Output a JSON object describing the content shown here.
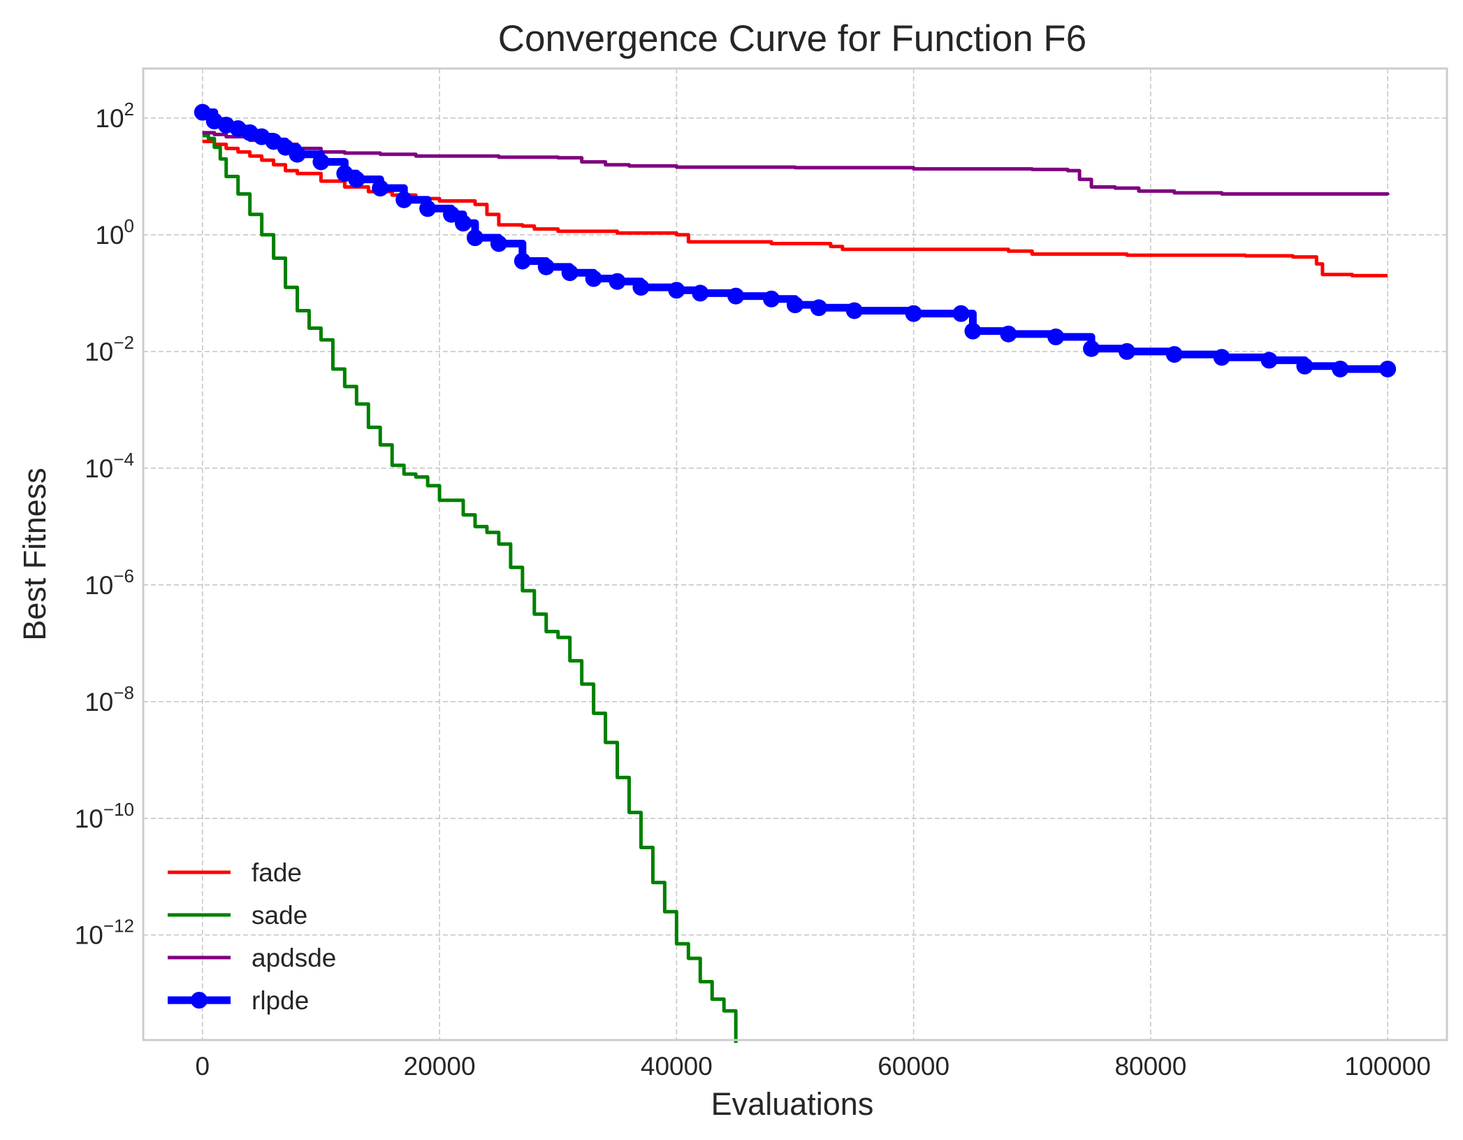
{
  "chart_data": {
    "type": "line",
    "title": "Convergence Curve for Function F6",
    "xlabel": "Evaluations",
    "ylabel": "Best Fitness",
    "xlim": [
      -5000,
      105000
    ],
    "ylim_log10": [
      -13.8,
      2.85
    ],
    "yscale": "log",
    "grid": true,
    "legend_position": "lower-left",
    "x_ticks": [
      {
        "value": 0,
        "label": "0"
      },
      {
        "value": 20000,
        "label": "20000"
      },
      {
        "value": 40000,
        "label": "40000"
      },
      {
        "value": 60000,
        "label": "60000"
      },
      {
        "value": 80000,
        "label": "80000"
      },
      {
        "value": 100000,
        "label": "100000"
      }
    ],
    "y_ticks": [
      {
        "exp": 2,
        "base": "10",
        "sup": "2"
      },
      {
        "exp": 0,
        "base": "10",
        "sup": "0"
      },
      {
        "exp": -2,
        "base": "10",
        "sup": "−2"
      },
      {
        "exp": -4,
        "base": "10",
        "sup": "−4"
      },
      {
        "exp": -6,
        "base": "10",
        "sup": "−6"
      },
      {
        "exp": -8,
        "base": "10",
        "sup": "−8"
      },
      {
        "exp": -10,
        "base": "10",
        "sup": "−10"
      },
      {
        "exp": -12,
        "base": "10",
        "sup": "−12"
      }
    ],
    "series": [
      {
        "name": "fade",
        "color": "#ff0000",
        "marker": "none",
        "points": [
          [
            0,
            1.6
          ],
          [
            1000,
            1.55
          ],
          [
            2000,
            1.48
          ],
          [
            3000,
            1.42
          ],
          [
            4000,
            1.35
          ],
          [
            5000,
            1.28
          ],
          [
            6000,
            1.2
          ],
          [
            7000,
            1.1
          ],
          [
            8000,
            1.05
          ],
          [
            10000,
            0.92
          ],
          [
            12000,
            0.82
          ],
          [
            14000,
            0.74
          ],
          [
            16000,
            0.68
          ],
          [
            18000,
            0.62
          ],
          [
            20000,
            0.58
          ],
          [
            23000,
            0.52
          ],
          [
            24000,
            0.35
          ],
          [
            25000,
            0.17
          ],
          [
            27000,
            0.15
          ],
          [
            28000,
            0.1
          ],
          [
            30000,
            0.06
          ],
          [
            35000,
            0.03
          ],
          [
            40000,
            0.0
          ],
          [
            41000,
            -0.12
          ],
          [
            48000,
            -0.15
          ],
          [
            53000,
            -0.2
          ],
          [
            54000,
            -0.25
          ],
          [
            68000,
            -0.28
          ],
          [
            70000,
            -0.33
          ],
          [
            78000,
            -0.35
          ],
          [
            88000,
            -0.36
          ],
          [
            92000,
            -0.38
          ],
          [
            94000,
            -0.5
          ],
          [
            94500,
            -0.68
          ],
          [
            97000,
            -0.7
          ],
          [
            100000,
            -0.7
          ]
        ]
      },
      {
        "name": "sade",
        "color": "#008000",
        "marker": "none",
        "points": [
          [
            0,
            1.7
          ],
          [
            500,
            1.65
          ],
          [
            1000,
            1.5
          ],
          [
            1500,
            1.3
          ],
          [
            2000,
            1.0
          ],
          [
            3000,
            0.7
          ],
          [
            4000,
            0.35
          ],
          [
            5000,
            0.0
          ],
          [
            6000,
            -0.4
          ],
          [
            7000,
            -0.9
          ],
          [
            8000,
            -1.3
          ],
          [
            9000,
            -1.6
          ],
          [
            10000,
            -1.8
          ],
          [
            11000,
            -2.3
          ],
          [
            12000,
            -2.6
          ],
          [
            13000,
            -2.9
          ],
          [
            14000,
            -3.3
          ],
          [
            15000,
            -3.6
          ],
          [
            16000,
            -3.95
          ],
          [
            17000,
            -4.1
          ],
          [
            18000,
            -4.15
          ],
          [
            19000,
            -4.3
          ],
          [
            20000,
            -4.55
          ],
          [
            22000,
            -4.8
          ],
          [
            23000,
            -5.0
          ],
          [
            24000,
            -5.1
          ],
          [
            25000,
            -5.3
          ],
          [
            26000,
            -5.7
          ],
          [
            27000,
            -6.1
          ],
          [
            28000,
            -6.5
          ],
          [
            29000,
            -6.8
          ],
          [
            30000,
            -6.9
          ],
          [
            31000,
            -7.3
          ],
          [
            32000,
            -7.7
          ],
          [
            33000,
            -8.2
          ],
          [
            34000,
            -8.7
          ],
          [
            35000,
            -9.3
          ],
          [
            36000,
            -9.9
          ],
          [
            37000,
            -10.5
          ],
          [
            38000,
            -11.1
          ],
          [
            39000,
            -11.6
          ],
          [
            40000,
            -12.15
          ],
          [
            41000,
            -12.4
          ],
          [
            42000,
            -12.8
          ],
          [
            43000,
            -13.1
          ],
          [
            44000,
            -13.3
          ],
          [
            45000,
            -13.85
          ]
        ]
      },
      {
        "name": "apdsde",
        "color": "#800080",
        "marker": "none",
        "points": [
          [
            0,
            1.75
          ],
          [
            1000,
            1.72
          ],
          [
            2000,
            1.68
          ],
          [
            4000,
            1.62
          ],
          [
            6000,
            1.55
          ],
          [
            8000,
            1.48
          ],
          [
            10000,
            1.42
          ],
          [
            12000,
            1.4
          ],
          [
            15000,
            1.38
          ],
          [
            18000,
            1.35
          ],
          [
            25000,
            1.33
          ],
          [
            30000,
            1.32
          ],
          [
            32000,
            1.25
          ],
          [
            34000,
            1.2
          ],
          [
            36000,
            1.18
          ],
          [
            40000,
            1.16
          ],
          [
            50000,
            1.15
          ],
          [
            60000,
            1.13
          ],
          [
            70000,
            1.12
          ],
          [
            73000,
            1.1
          ],
          [
            74000,
            0.95
          ],
          [
            75000,
            0.82
          ],
          [
            77000,
            0.8
          ],
          [
            79000,
            0.75
          ],
          [
            82000,
            0.72
          ],
          [
            86000,
            0.7
          ],
          [
            90000,
            0.7
          ],
          [
            100000,
            0.68
          ]
        ]
      },
      {
        "name": "rlpde",
        "color": "#0000ff",
        "marker": "o",
        "points": [
          [
            0,
            2.1
          ],
          [
            1000,
            1.95
          ],
          [
            2000,
            1.88
          ],
          [
            3000,
            1.82
          ],
          [
            4000,
            1.75
          ],
          [
            5000,
            1.68
          ],
          [
            6000,
            1.6
          ],
          [
            7000,
            1.5
          ],
          [
            8000,
            1.38
          ],
          [
            10000,
            1.25
          ],
          [
            12000,
            1.05
          ],
          [
            13000,
            0.95
          ],
          [
            15000,
            0.8
          ],
          [
            17000,
            0.6
          ],
          [
            19000,
            0.45
          ],
          [
            21000,
            0.35
          ],
          [
            22000,
            0.2
          ],
          [
            23000,
            -0.05
          ],
          [
            25000,
            -0.15
          ],
          [
            27000,
            -0.45
          ],
          [
            29000,
            -0.55
          ],
          [
            31000,
            -0.65
          ],
          [
            33000,
            -0.75
          ],
          [
            35000,
            -0.8
          ],
          [
            37000,
            -0.9
          ],
          [
            40000,
            -0.95
          ],
          [
            42000,
            -1.0
          ],
          [
            45000,
            -1.05
          ],
          [
            48000,
            -1.1
          ],
          [
            50000,
            -1.2
          ],
          [
            52000,
            -1.25
          ],
          [
            55000,
            -1.3
          ],
          [
            60000,
            -1.35
          ],
          [
            64000,
            -1.35
          ],
          [
            65000,
            -1.65
          ],
          [
            68000,
            -1.7
          ],
          [
            72000,
            -1.75
          ],
          [
            75000,
            -1.95
          ],
          [
            78000,
            -2.0
          ],
          [
            82000,
            -2.05
          ],
          [
            86000,
            -2.1
          ],
          [
            90000,
            -2.15
          ],
          [
            93000,
            -2.25
          ],
          [
            96000,
            -2.3
          ],
          [
            100000,
            -2.3
          ]
        ]
      }
    ]
  }
}
